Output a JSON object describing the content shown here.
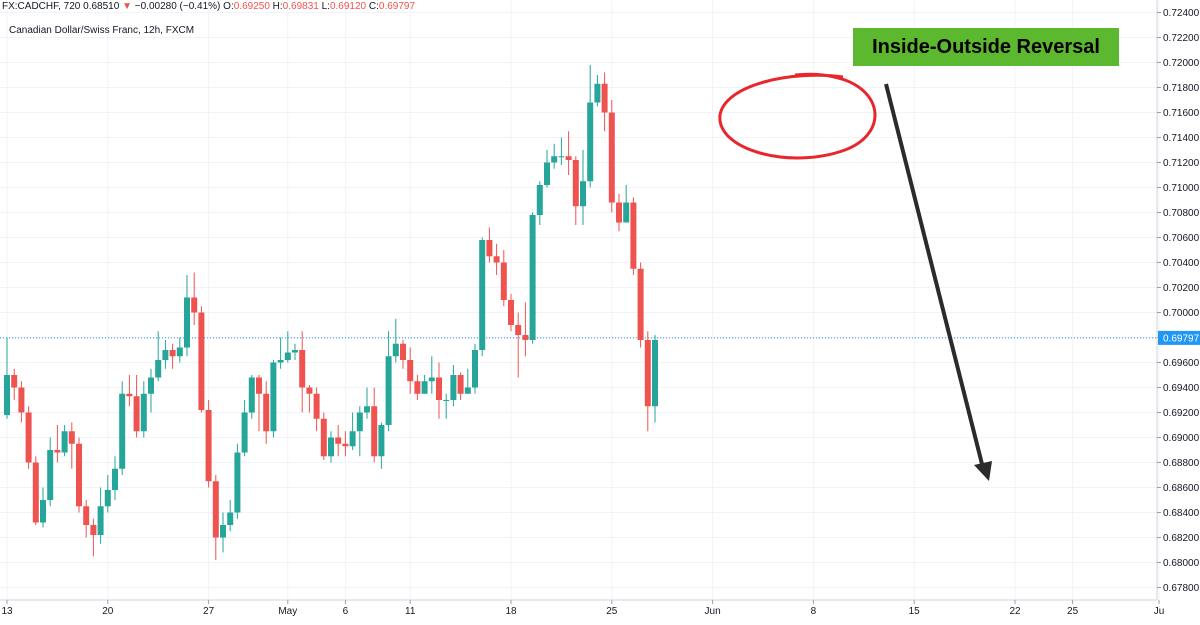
{
  "header": {
    "symbol": "FX:CADCHF, 720",
    "last": "0.68510",
    "arrow": "▼",
    "change": "−0.00280 (−0.41%)",
    "o_label": "O:",
    "o": "0.69250",
    "h_label": "H:",
    "h": "0.69831",
    "l_label": "L:",
    "l": "0.69120",
    "c_label": "C:",
    "c": "0.69797",
    "subtitle": "Canadian Dollar/Swiss Franc, 12h, FXCM"
  },
  "annotation": {
    "badge": "Inside-Outside Reversal"
  },
  "colors": {
    "up": "#26a69a",
    "down": "#ef5350",
    "circle": "#e8262b",
    "arrow": "#2b2b2b",
    "badge": "#5cb82e",
    "price_line": "#2196f3"
  },
  "chart_data": {
    "type": "candlestick",
    "ylim": [
      0.677,
      0.725
    ],
    "y_ticks": [
      "0.67800",
      "0.68000",
      "0.68200",
      "0.68400",
      "0.68600",
      "0.68800",
      "0.69000",
      "0.69200",
      "0.69400",
      "0.69600",
      "0.69800",
      "0.70000",
      "0.70200",
      "0.70400",
      "0.70600",
      "0.70800",
      "0.71000",
      "0.71200",
      "0.71400",
      "0.71600",
      "0.71800",
      "0.72000",
      "0.72200",
      "0.72400"
    ],
    "x_ticks": [
      {
        "label": "13",
        "i": 0
      },
      {
        "label": "20",
        "i": 14
      },
      {
        "label": "27",
        "i": 28
      },
      {
        "label": "May",
        "i": 39
      },
      {
        "label": "6",
        "i": 47
      },
      {
        "label": "11",
        "i": 56
      },
      {
        "label": "18",
        "i": 70
      },
      {
        "label": "25",
        "i": 84
      },
      {
        "label": "Jun",
        "i": 98
      },
      {
        "label": "8",
        "i": 112
      },
      {
        "label": "15",
        "i": 126
      },
      {
        "label": "22",
        "i": 140
      },
      {
        "label": "25",
        "i": 148
      },
      {
        "label": "Ju",
        "i": 160
      }
    ],
    "last_price": "0.69797",
    "last_price_value": 0.69797,
    "candles": [
      [
        0.6918,
        0.695,
        0.698,
        0.6915
      ],
      [
        0.695,
        0.694,
        0.6955,
        0.693
      ],
      [
        0.694,
        0.692,
        0.6945,
        0.6912
      ],
      [
        0.692,
        0.688,
        0.6925,
        0.6875
      ],
      [
        0.688,
        0.6832,
        0.6885,
        0.683
      ],
      [
        0.6832,
        0.685,
        0.686,
        0.6828
      ],
      [
        0.685,
        0.689,
        0.69,
        0.6845
      ],
      [
        0.689,
        0.6888,
        0.691,
        0.688
      ],
      [
        0.6888,
        0.6905,
        0.691,
        0.6885
      ],
      [
        0.6905,
        0.6895,
        0.6912,
        0.6875
      ],
      [
        0.6895,
        0.6845,
        0.69,
        0.684
      ],
      [
        0.6845,
        0.683,
        0.685,
        0.682
      ],
      [
        0.683,
        0.6822,
        0.6835,
        0.6805
      ],
      [
        0.6822,
        0.6845,
        0.686,
        0.6815
      ],
      [
        0.6845,
        0.6858,
        0.687,
        0.684
      ],
      [
        0.6858,
        0.6875,
        0.6885,
        0.685
      ],
      [
        0.6875,
        0.6935,
        0.6945,
        0.687
      ],
      [
        0.6935,
        0.6933,
        0.695,
        0.6925
      ],
      [
        0.6933,
        0.6905,
        0.695,
        0.69
      ],
      [
        0.6905,
        0.6935,
        0.6945,
        0.69
      ],
      [
        0.6935,
        0.6948,
        0.6955,
        0.692
      ],
      [
        0.6948,
        0.6962,
        0.6985,
        0.6945
      ],
      [
        0.6962,
        0.697,
        0.6978,
        0.6955
      ],
      [
        0.697,
        0.6965,
        0.6975,
        0.6955
      ],
      [
        0.6965,
        0.6972,
        0.698,
        0.696
      ],
      [
        0.6972,
        0.7012,
        0.703,
        0.6965
      ],
      [
        0.7012,
        0.7,
        0.7032,
        0.699
      ],
      [
        0.7,
        0.6922,
        0.7005,
        0.692
      ],
      [
        0.6922,
        0.6865,
        0.693,
        0.686
      ],
      [
        0.6865,
        0.682,
        0.687,
        0.6802
      ],
      [
        0.682,
        0.683,
        0.684,
        0.6808
      ],
      [
        0.683,
        0.684,
        0.685,
        0.6825
      ],
      [
        0.684,
        0.6888,
        0.6895,
        0.6835
      ],
      [
        0.6888,
        0.692,
        0.693,
        0.6885
      ],
      [
        0.692,
        0.6948,
        0.695,
        0.6915
      ],
      [
        0.6948,
        0.6935,
        0.695,
        0.6905
      ],
      [
        0.6935,
        0.6905,
        0.6945,
        0.6895
      ],
      [
        0.6905,
        0.696,
        0.6962,
        0.69
      ],
      [
        0.696,
        0.6962,
        0.698,
        0.6955
      ],
      [
        0.6962,
        0.6968,
        0.6985,
        0.696
      ],
      [
        0.6968,
        0.697,
        0.6975,
        0.6962
      ],
      [
        0.697,
        0.694,
        0.6985,
        0.692
      ],
      [
        0.694,
        0.6935,
        0.6942,
        0.692
      ],
      [
        0.6935,
        0.6915,
        0.694,
        0.6905
      ],
      [
        0.6915,
        0.6885,
        0.692,
        0.6882
      ],
      [
        0.6885,
        0.69,
        0.6905,
        0.688
      ],
      [
        0.69,
        0.6895,
        0.691,
        0.6885
      ],
      [
        0.6895,
        0.6893,
        0.6905,
        0.6885
      ],
      [
        0.6893,
        0.6905,
        0.692,
        0.689
      ],
      [
        0.6905,
        0.692,
        0.6925,
        0.6885
      ],
      [
        0.692,
        0.6925,
        0.694,
        0.6915
      ],
      [
        0.6925,
        0.6885,
        0.694,
        0.688
      ],
      [
        0.6885,
        0.691,
        0.6912,
        0.6875
      ],
      [
        0.691,
        0.6965,
        0.6985,
        0.6905
      ],
      [
        0.6965,
        0.6975,
        0.6995,
        0.696
      ],
      [
        0.6975,
        0.6962,
        0.6978,
        0.6955
      ],
      [
        0.6962,
        0.6945,
        0.6972,
        0.6935
      ],
      [
        0.6945,
        0.6935,
        0.695,
        0.693
      ],
      [
        0.6935,
        0.6945,
        0.695,
        0.6935
      ],
      [
        0.6945,
        0.6948,
        0.6965,
        0.6935
      ],
      [
        0.6948,
        0.693,
        0.696,
        0.6915
      ],
      [
        0.693,
        0.693,
        0.6935,
        0.6915
      ],
      [
        0.693,
        0.695,
        0.6958,
        0.6925
      ],
      [
        0.695,
        0.6935,
        0.6952,
        0.693
      ],
      [
        0.6935,
        0.694,
        0.6955,
        0.6935
      ],
      [
        0.694,
        0.697,
        0.6975,
        0.6935
      ],
      [
        0.697,
        0.7058,
        0.706,
        0.6965
      ],
      [
        0.7058,
        0.7045,
        0.7068,
        0.704
      ],
      [
        0.7045,
        0.704,
        0.7055,
        0.703
      ],
      [
        0.704,
        0.701,
        0.705,
        0.7005
      ],
      [
        0.701,
        0.699,
        0.7015,
        0.6985
      ],
      [
        0.699,
        0.6982,
        0.7,
        0.6948
      ],
      [
        0.6982,
        0.6978,
        0.7008,
        0.6965
      ],
      [
        0.6978,
        0.7078,
        0.708,
        0.6975
      ],
      [
        0.7078,
        0.7102,
        0.7105,
        0.707
      ],
      [
        0.7102,
        0.712,
        0.713,
        0.71
      ],
      [
        0.712,
        0.7125,
        0.7135,
        0.7115
      ],
      [
        0.7125,
        0.7125,
        0.714,
        0.7118
      ],
      [
        0.7125,
        0.7122,
        0.7145,
        0.711
      ],
      [
        0.7122,
        0.7085,
        0.7125,
        0.707
      ],
      [
        0.7085,
        0.7105,
        0.713,
        0.707
      ],
      [
        0.7105,
        0.7168,
        0.7198,
        0.71
      ],
      [
        0.7168,
        0.7183,
        0.719,
        0.7165
      ],
      [
        0.7183,
        0.716,
        0.7192,
        0.7145
      ],
      [
        0.716,
        0.7088,
        0.717,
        0.708
      ],
      [
        0.7088,
        0.7072,
        0.7095,
        0.7065
      ],
      [
        0.7072,
        0.7088,
        0.7102,
        0.7078
      ],
      [
        0.7088,
        0.7035,
        0.7092,
        0.703
      ],
      [
        0.7035,
        0.6978,
        0.704,
        0.6972
      ],
      [
        0.6978,
        0.6925,
        0.6985,
        0.6905
      ],
      [
        0.6925,
        0.6978,
        0.6982,
        0.6912
      ]
    ]
  }
}
